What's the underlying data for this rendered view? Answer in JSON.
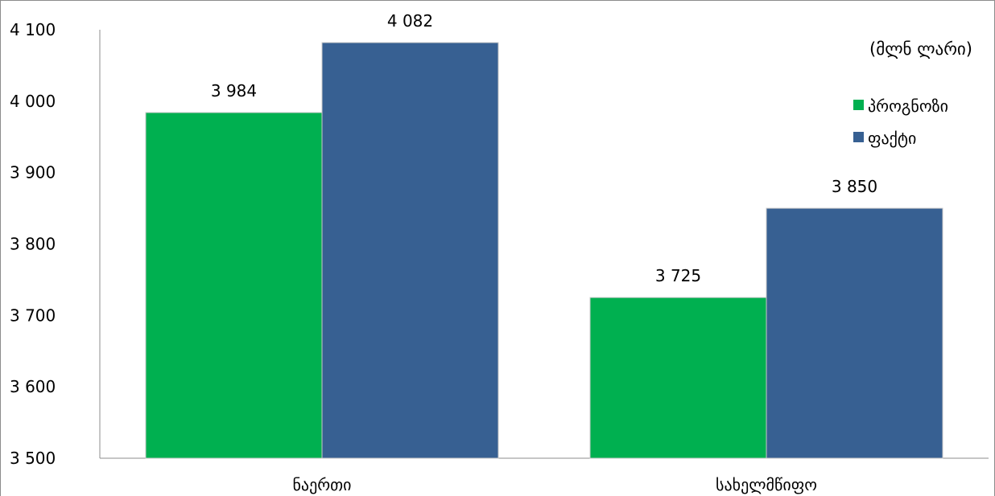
{
  "chart_data": {
    "type": "bar",
    "unit_label": "(მლნ ლარი)",
    "categories": [
      "ნაერთი",
      "სახელმწიფო"
    ],
    "series": [
      {
        "name": "პროგნოზი",
        "color": "#00b050",
        "values": [
          3984,
          3725
        ]
      },
      {
        "name": "ფაქტი",
        "color": "#376092",
        "values": [
          4082,
          3850
        ]
      }
    ],
    "data_labels": [
      [
        "3 984",
        "3 725"
      ],
      [
        "4 082",
        "3 850"
      ]
    ],
    "ylim": [
      3500,
      4100
    ],
    "yticks": [
      3500,
      3600,
      3700,
      3800,
      3900,
      4000,
      4100
    ],
    "ytick_labels": [
      "3 500",
      "3 600",
      "3 700",
      "3 800",
      "3 900",
      "4 000",
      "4 100"
    ],
    "grid": false,
    "legend_position": "top-right"
  }
}
